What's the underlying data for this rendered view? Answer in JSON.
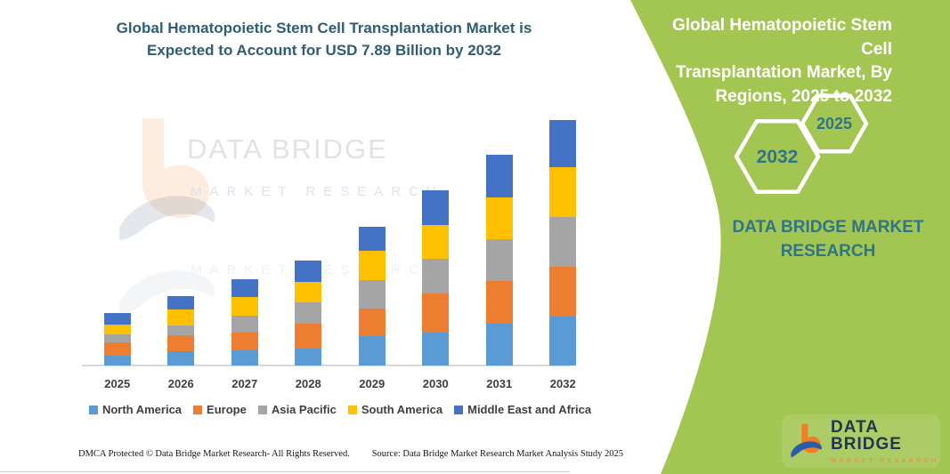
{
  "left_panel": {
    "title_lines": [
      "Global Hematopoietic Stem Cell Transplantation Market is",
      "Expected to Account for USD 7.89 Billion by 2032"
    ],
    "watermark": {
      "line1": "DATA BRIDGE",
      "line2": "MARKET RESEARCH"
    },
    "footer": {
      "dmca": "DMCA Protected © Data Bridge Market Research-  All Rights Reserved.",
      "source": "Source: Data Bridge Market Research  Market Analysis Study 2025"
    }
  },
  "chart_data": {
    "type": "bar",
    "stacked": true,
    "title": "Global Hematopoietic Stem Cell Transplantation Market, By Regions, 2025 to 2032",
    "unit": "USD Billion",
    "categories": [
      "2025",
      "2026",
      "2027",
      "2028",
      "2029",
      "2030",
      "2031",
      "2032"
    ],
    "series": [
      {
        "name": "North America",
        "color": "#5B9BD5",
        "values": [
          0.32,
          0.46,
          0.5,
          0.55,
          0.93,
          1.07,
          1.33,
          1.57
        ]
      },
      {
        "name": "Europe",
        "color": "#ED7D31",
        "values": [
          0.42,
          0.52,
          0.57,
          0.78,
          0.9,
          1.24,
          1.38,
          1.59
        ]
      },
      {
        "name": "Asia Pacific",
        "color": "#A5A5A5",
        "values": [
          0.27,
          0.32,
          0.52,
          0.69,
          0.9,
          1.11,
          1.36,
          1.6
        ]
      },
      {
        "name": "South America",
        "color": "#FFC000",
        "values": [
          0.31,
          0.49,
          0.62,
          0.67,
          0.97,
          1.09,
          1.32,
          1.61
        ]
      },
      {
        "name": "Middle East and Africa",
        "color": "#4472C4",
        "values": [
          0.36,
          0.44,
          0.55,
          0.69,
          0.77,
          1.13,
          1.38,
          1.52
        ]
      }
    ],
    "totals": [
      1.68,
      2.23,
      2.76,
      3.38,
      4.47,
      5.64,
      6.77,
      7.89
    ],
    "ylim": [
      0,
      8
    ],
    "gridlines": false,
    "y_axis_labels": false,
    "legend_position": "bottom"
  },
  "right_panel": {
    "title_lines": [
      "Global Hematopoietic Stem Cell",
      "Transplantation Market, By",
      "Regions, 2025 to 2032"
    ],
    "hexagon_back_label": "2032",
    "hexagon_front_label": "2025",
    "brand_lines": [
      "DATA BRIDGE MARKET",
      "RESEARCH"
    ],
    "logo": {
      "name": "DATA BRIDGE",
      "sub": "MARKET RESEARCH"
    },
    "colors": {
      "background": "#A3C653",
      "teal": "#2F7585",
      "white": "#FFFFFF"
    }
  }
}
